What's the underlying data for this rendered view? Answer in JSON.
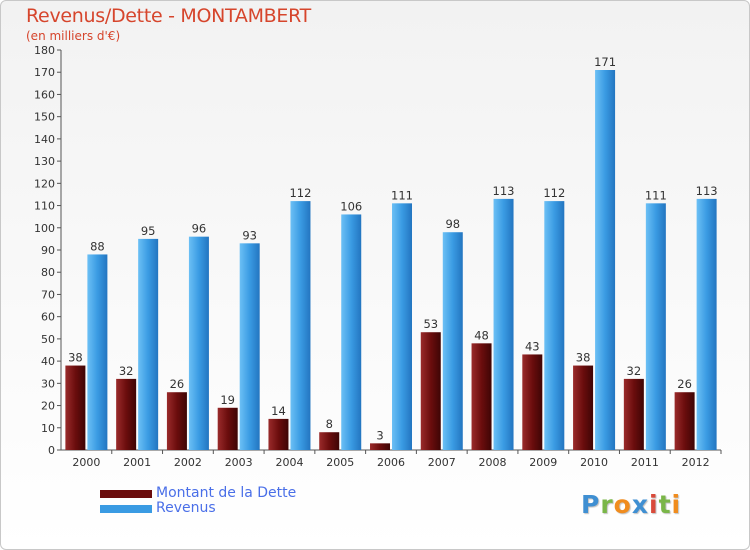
{
  "header": {
    "title": "Revenus/Dette - MONTAMBERT",
    "subtitle": "(en milliers d'€)"
  },
  "legend": {
    "items": [
      {
        "label": "Montant de la Dette",
        "color": "#6b0d0d"
      },
      {
        "label": "Revenus",
        "color": "#3a9be3"
      }
    ]
  },
  "logo": {
    "text": "Proxiti",
    "letters": [
      {
        "ch": "P",
        "color": "#3f8fd2"
      },
      {
        "ch": "r",
        "color": "#7ab648"
      },
      {
        "ch": "o",
        "color": "#f08c1e"
      },
      {
        "ch": "x",
        "color": "#3f8fd2"
      },
      {
        "ch": "i",
        "color": "#d94a3a"
      },
      {
        "ch": "t",
        "color": "#7ab648"
      },
      {
        "ch": "i",
        "color": "#f08c1e"
      }
    ]
  },
  "chart_data": {
    "type": "bar",
    "title": "Revenus/Dette - MONTAMBERT",
    "subtitle": "(en milliers d'€)",
    "categories": [
      "2000",
      "2001",
      "2002",
      "2003",
      "2004",
      "2005",
      "2006",
      "2007",
      "2008",
      "2009",
      "2010",
      "2011",
      "2012"
    ],
    "series": [
      {
        "name": "Montant de la Dette",
        "color": "#6b0d0d",
        "values": [
          38,
          32,
          26,
          19,
          14,
          8,
          3,
          53,
          48,
          43,
          38,
          32,
          26
        ]
      },
      {
        "name": "Revenus",
        "color": "#3a9be3",
        "values": [
          88,
          95,
          96,
          93,
          112,
          106,
          111,
          98,
          113,
          112,
          171,
          111,
          113
        ]
      }
    ],
    "ylim": [
      0,
      180
    ],
    "yticks": [
      0,
      10,
      20,
      30,
      40,
      50,
      60,
      70,
      80,
      90,
      100,
      110,
      120,
      130,
      140,
      150,
      160,
      170,
      180
    ],
    "grid": false,
    "legend_position": "bottom-left"
  }
}
